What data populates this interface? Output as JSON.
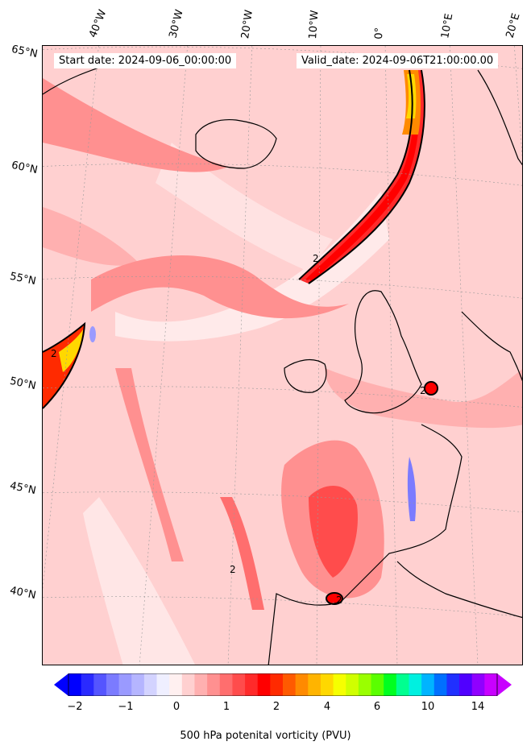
{
  "map": {
    "start_date": "Start date: 2024-09-06_00:00:00",
    "valid_date": "Valid_date: 2024-09-06T21:00:00.00",
    "contour_label": "2",
    "lat_labels": [
      "65°N",
      "60°N",
      "55°N",
      "50°N",
      "45°N",
      "40°N"
    ],
    "lon_labels": [
      "40°W",
      "30°W",
      "20°W",
      "10°W",
      "0°",
      "10°E",
      "20°E"
    ]
  },
  "colorbar": {
    "title": "500 hPa potenital vorticity (PVU)",
    "ticks": [
      "−2",
      "−1",
      "0",
      "1",
      "2",
      "4",
      "6",
      "10",
      "14"
    ],
    "colors": [
      "#0000ff",
      "#2a2aff",
      "#5555ff",
      "#7b7bff",
      "#9a9aff",
      "#b5b5ff",
      "#d3d3ff",
      "#efefff",
      "#fff0f0",
      "#ffd0d0",
      "#ffb0b0",
      "#ff9090",
      "#ff6e6e",
      "#ff4c4c",
      "#ff2a2a",
      "#ff0000",
      "#ff2a00",
      "#ff5a00",
      "#ff8a00",
      "#ffb400",
      "#ffd800",
      "#f6ff00",
      "#d0ff00",
      "#9aff00",
      "#5aff00",
      "#00ff20",
      "#00ff90",
      "#00f0e0",
      "#00b4ff",
      "#0070ff",
      "#2030ff",
      "#5000ff",
      "#9000ff",
      "#c800ff"
    ]
  }
}
